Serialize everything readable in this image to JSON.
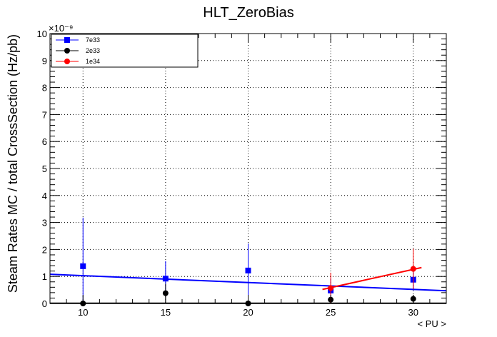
{
  "chart_data": {
    "type": "scatter",
    "title": "HLT_ZeroBias",
    "xlabel": "< PU >",
    "ylabel": "Steam Rates MC / total CrossSection (Hz/pb)",
    "y_multiplier": "×10⁻⁹",
    "xlim": [
      8,
      32
    ],
    "ylim": [
      0,
      10
    ],
    "x_ticks": [
      10,
      15,
      20,
      25,
      30
    ],
    "y_ticks": [
      0,
      1,
      2,
      3,
      4,
      5,
      6,
      7,
      8,
      9,
      10
    ],
    "grid": true,
    "legend_position": "top-left",
    "series": [
      {
        "name": "7e33",
        "color": "#0000ff",
        "marker": "square",
        "points": [
          {
            "x": 10,
            "y": 1.38,
            "err": 1.8
          },
          {
            "x": 15,
            "y": 0.92,
            "err": 0.65
          },
          {
            "x": 20,
            "y": 1.22,
            "err": 1.0
          },
          {
            "x": 25,
            "y": 0.48,
            "err": 0.45
          },
          {
            "x": 30,
            "y": 0.88,
            "err": 0.4
          }
        ],
        "fit": {
          "x": [
            8,
            32
          ],
          "y": [
            1.08,
            0.47
          ]
        }
      },
      {
        "name": "2e33",
        "color": "#000000",
        "marker": "circle",
        "points": [
          {
            "x": 10,
            "y": 0.0,
            "err": 0.0
          },
          {
            "x": 15,
            "y": 0.38,
            "err": 0.35
          },
          {
            "x": 20,
            "y": 0.0,
            "err": 0.0
          },
          {
            "x": 25,
            "y": 0.14,
            "err": 0.12
          },
          {
            "x": 30,
            "y": 0.17,
            "err": 0.15
          }
        ],
        "fit": {
          "x": [
            8,
            32
          ],
          "y": [
            0.005,
            0.005
          ]
        }
      },
      {
        "name": "1e34",
        "color": "#ff0000",
        "marker": "circle",
        "points": [
          {
            "x": 25,
            "y": 0.57,
            "err": 0.57
          },
          {
            "x": 30,
            "y": 1.28,
            "err": 0.75
          }
        ],
        "fit": {
          "x": [
            24.5,
            30.5
          ],
          "y": [
            0.52,
            1.33
          ]
        }
      }
    ]
  }
}
